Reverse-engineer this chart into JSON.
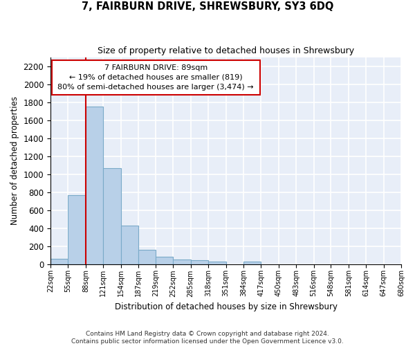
{
  "title": "7, FAIRBURN DRIVE, SHREWSBURY, SY3 6DQ",
  "subtitle": "Size of property relative to detached houses in Shrewsbury",
  "xlabel": "Distribution of detached houses by size in Shrewsbury",
  "ylabel": "Number of detached properties",
  "bar_color": "#b8d0e8",
  "bar_edge_color": "#7aaac8",
  "background_color": "#e8eef8",
  "grid_color": "#ffffff",
  "property_line_color": "#cc0000",
  "annotation_line1": "7 FAIRBURN DRIVE: 89sqm",
  "annotation_line2": "← 19% of detached houses are smaller (819)",
  "annotation_line3": "80% of semi-detached houses are larger (3,474) →",
  "annotation_box_color": "#cc0000",
  "bin_edges": [
    22,
    55,
    88,
    121,
    154,
    187,
    219,
    252,
    285,
    318,
    351,
    384,
    417,
    450,
    483,
    516,
    548,
    581,
    614,
    647,
    680
  ],
  "bin_labels": [
    "22sqm",
    "55sqm",
    "88sqm",
    "121sqm",
    "154sqm",
    "187sqm",
    "219sqm",
    "252sqm",
    "285sqm",
    "318sqm",
    "351sqm",
    "384sqm",
    "417sqm",
    "450sqm",
    "483sqm",
    "516sqm",
    "548sqm",
    "581sqm",
    "614sqm",
    "647sqm",
    "680sqm"
  ],
  "bar_heights": [
    55,
    770,
    1750,
    1065,
    430,
    155,
    80,
    47,
    42,
    30,
    0,
    25,
    0,
    0,
    0,
    0,
    0,
    0,
    0,
    0
  ],
  "ylim": [
    0,
    2300
  ],
  "yticks": [
    0,
    200,
    400,
    600,
    800,
    1000,
    1200,
    1400,
    1600,
    1800,
    2000,
    2200
  ],
  "footer_text": "Contains HM Land Registry data © Crown copyright and database right 2024.\nContains public sector information licensed under the Open Government Licence v3.0.",
  "figsize": [
    6.0,
    5.0
  ],
  "dpi": 100
}
